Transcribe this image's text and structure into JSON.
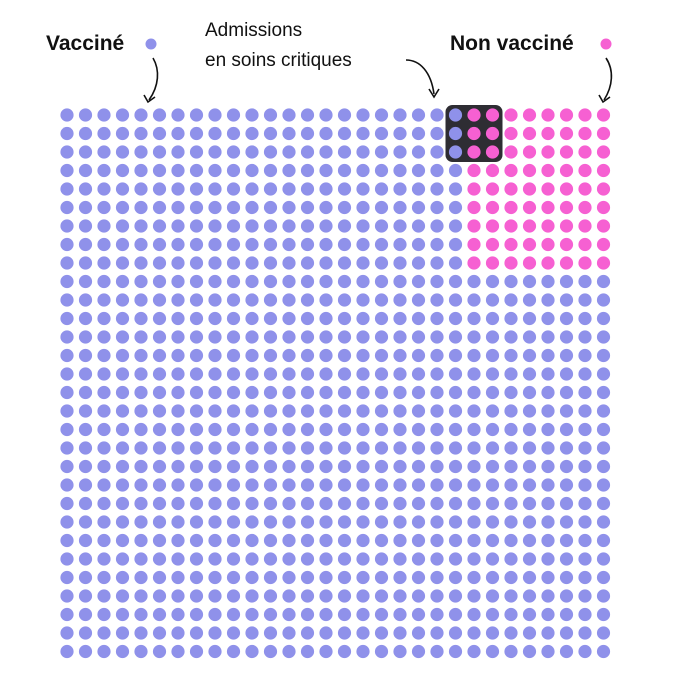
{
  "chart_data": {
    "type": "waffle",
    "grid": {
      "columns": 30,
      "rows": 30
    },
    "series": [
      {
        "name": "Vacciné",
        "color": "#8f91ea",
        "count": 828
      },
      {
        "name": "Non vacciné",
        "color": "#f660d2",
        "count": 72
      }
    ],
    "highlight": {
      "label_line1": "Admissions",
      "label_line2": "en soins critiques",
      "vaccinated": 3,
      "unvaccinated": 6,
      "box_color": "#2e2d33"
    },
    "labels": {
      "vaccinated": "Vacciné",
      "unvaccinated": "Non vacciné"
    }
  }
}
